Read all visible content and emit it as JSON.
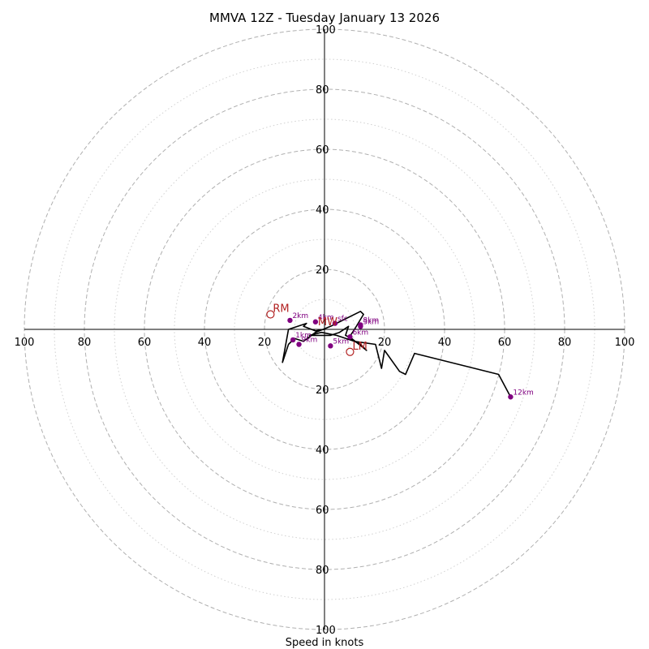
{
  "chart_data": {
    "type": "hodograph",
    "title": "MMVA 12Z - Tuesday January 13 2026",
    "xlabel": "Speed in knots",
    "units": "knots",
    "max_speed": 100,
    "ring_values_dashed": [
      20,
      40,
      60,
      80,
      100
    ],
    "ring_values_dotted": [
      10,
      30,
      50,
      70,
      90
    ],
    "x_tick_labels": [
      "100",
      "80",
      "60",
      "40",
      "20",
      "20",
      "40",
      "60",
      "80",
      "100"
    ],
    "x_tick_values": [
      -100,
      -80,
      -60,
      -40,
      -20,
      20,
      40,
      60,
      80,
      100
    ],
    "y_tick_labels": [
      "100",
      "80",
      "60",
      "40",
      "20",
      "20",
      "40",
      "60",
      "80",
      "100"
    ],
    "y_tick_values": [
      100,
      80,
      60,
      40,
      20,
      -20,
      -40,
      -60,
      -80,
      -100
    ],
    "hodograph_trace": [
      [
        0,
        0
      ],
      [
        -3,
        -0.5
      ],
      [
        -7,
        1
      ],
      [
        -6,
        2
      ],
      [
        -12,
        0
      ],
      [
        -14,
        -11
      ],
      [
        -12,
        -5
      ],
      [
        -10,
        -3
      ],
      [
        -7,
        -4
      ],
      [
        -3,
        -1
      ],
      [
        2,
        1
      ],
      [
        6,
        3
      ],
      [
        12,
        6
      ],
      [
        13,
        5
      ],
      [
        10,
        0
      ],
      [
        8,
        -3
      ],
      [
        12,
        -5
      ],
      [
        14,
        -7
      ],
      [
        9,
        -3
      ],
      [
        7,
        -2
      ],
      [
        8,
        1
      ],
      [
        5,
        -1
      ],
      [
        2,
        -2
      ],
      [
        -5,
        -2
      ],
      [
        -1,
        -1
      ],
      [
        4,
        -2
      ],
      [
        10,
        -4
      ],
      [
        17,
        -5
      ],
      [
        19,
        -13
      ],
      [
        20,
        -7
      ],
      [
        25,
        -14
      ],
      [
        27,
        -15
      ],
      [
        30,
        -8
      ],
      [
        58,
        -15
      ],
      [
        62,
        -22.5
      ]
    ],
    "height_markers": [
      {
        "label": "sfc",
        "u": 3.5,
        "v": 2
      },
      {
        "label": "1km",
        "u": -10.5,
        "v": -3.5
      },
      {
        "label": "2km",
        "u": -11.5,
        "v": 3
      },
      {
        "label": "3km",
        "u": 12,
        "v": 1
      },
      {
        "label": "4km",
        "u": -3,
        "v": 2.5
      },
      {
        "label": "5km",
        "u": 2,
        "v": -5.5
      },
      {
        "label": "6km",
        "u": 8.5,
        "v": -2.5
      },
      {
        "label": "8km",
        "u": 12,
        "v": 1.5
      },
      {
        "label": "9km",
        "u": -8.5,
        "v": -5
      },
      {
        "label": "12km",
        "u": 62,
        "v": -22.5
      }
    ],
    "storm_motion": [
      {
        "label": "RM",
        "u": -18,
        "v": 5
      },
      {
        "label": "LM",
        "u": 8.5,
        "v": -7.5
      },
      {
        "label": "MW",
        "u": -3,
        "v": 0.5
      }
    ],
    "colors": {
      "trace": "#000000",
      "marker": "#800080",
      "storm": "#b22222",
      "grid": "#b0b0b0",
      "grid_minor": "#d0d0d0",
      "axis": "#000000"
    }
  }
}
